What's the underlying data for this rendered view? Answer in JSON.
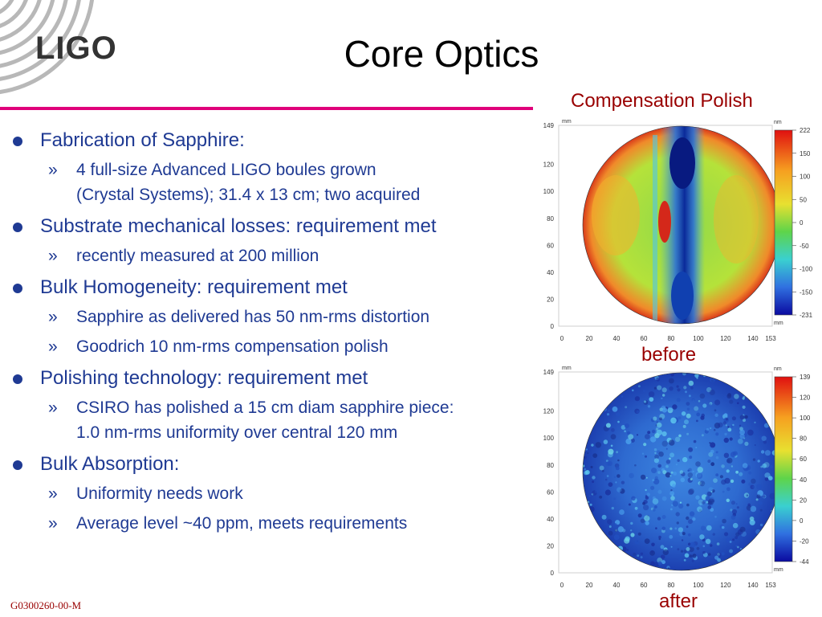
{
  "logo": {
    "text": "LIGO"
  },
  "slide": {
    "title": "Core Optics",
    "footer_id": "G0300260-00-M"
  },
  "colors": {
    "rule": "#e0007a",
    "bullet_text": "#1f3a93",
    "label_red": "#990000"
  },
  "bullets": [
    {
      "text": "Fabrication of Sapphire:",
      "sub": [
        {
          "lines": [
            "4 full-size Advanced LIGO boules grown",
            "(Crystal Systems); 31.4 x 13 cm; two acquired"
          ]
        }
      ]
    },
    {
      "text": "Substrate mechanical losses: requirement met",
      "sub": [
        {
          "lines": [
            "recently measured at 200 million"
          ]
        }
      ]
    },
    {
      "text": "Bulk Homogeneity: requirement met",
      "sub": [
        {
          "lines": [
            "Sapphire as delivered has 50 nm-rms distortion"
          ]
        },
        {
          "lines": [
            "Goodrich 10 nm-rms compensation polish"
          ]
        }
      ]
    },
    {
      "text": "Polishing technology: requirement met",
      "sub": [
        {
          "lines": [
            "CSIRO has polished a 15 cm diam sapphire piece:",
            "1.0 nm-rms uniformity over central 120 mm"
          ]
        }
      ]
    },
    {
      "text": "Bulk Absorption:",
      "sub": [
        {
          "lines": [
            "Uniformity needs work"
          ]
        },
        {
          "lines": [
            "Average level ~40 ppm, meets requirements"
          ]
        }
      ]
    }
  ],
  "figure": {
    "heading": "Compensation Polish",
    "maps": [
      {
        "caption": "before",
        "unit_label_x": "mm",
        "unit_label_y": "mm",
        "unit_label_scale": "nm",
        "y_ticks": [
          "149",
          "120",
          "100",
          "80",
          "60",
          "40",
          "20",
          "0"
        ],
        "x_ticks": [
          "0",
          "20",
          "40",
          "60",
          "80",
          "100",
          "120",
          "140",
          "153"
        ],
        "scale_ticks": [
          "222",
          "150",
          "100",
          "50",
          "0",
          "-50",
          "-100",
          "-150",
          "-231"
        ]
      },
      {
        "caption": "after",
        "unit_label_x": "mm",
        "unit_label_y": "mm",
        "unit_label_scale": "nm",
        "y_ticks": [
          "149",
          "120",
          "100",
          "80",
          "60",
          "40",
          "20",
          "0"
        ],
        "x_ticks": [
          "0",
          "20",
          "40",
          "60",
          "80",
          "100",
          "120",
          "140",
          "153"
        ],
        "scale_ticks": [
          "139",
          "120",
          "100",
          "80",
          "60",
          "40",
          "20",
          "0",
          "-20",
          "-44"
        ]
      }
    ]
  }
}
